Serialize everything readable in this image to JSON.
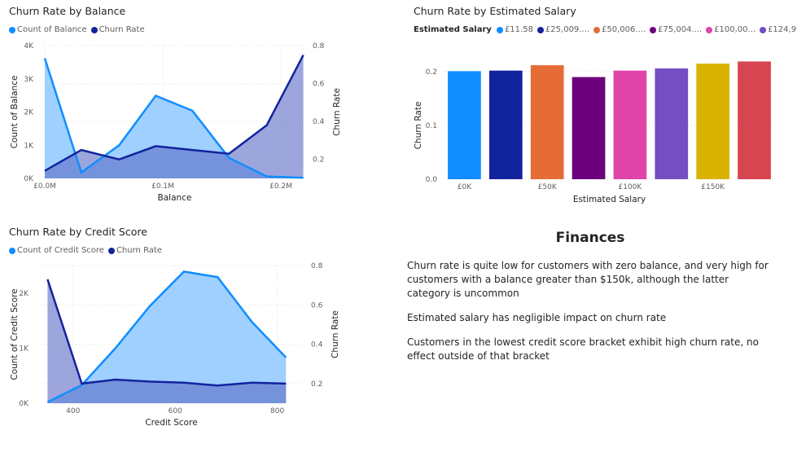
{
  "colors": {
    "count": "#118dff",
    "count_fill": "#9fd0ff",
    "churn": "#12239e",
    "churn_fill": "#5a6bc4",
    "axis_text": "#605e5c",
    "gridline": "#e1dfdd"
  },
  "chart_data": [
    {
      "type": "area",
      "title": "Churn Rate by Balance",
      "xlabel": "Balance",
      "ylabel": "Count of Balance",
      "y2label": "Churn Rate",
      "xlim": [
        0,
        0.22
      ],
      "ylim": [
        0,
        4000
      ],
      "y2lim": [
        0.1,
        0.8
      ],
      "xticks": [
        0,
        0.1,
        0.2
      ],
      "xtick_labels": [
        "£0.0M",
        "£0.1M",
        "£0.2M"
      ],
      "yticks": [
        0,
        1000,
        2000,
        3000,
        4000
      ],
      "ytick_labels": [
        "0K",
        "1K",
        "2K",
        "3K",
        "4K"
      ],
      "y2ticks": [
        0.2,
        0.4,
        0.6,
        0.8
      ],
      "y2tick_labels": [
        "0.2",
        "0.4",
        "0.6",
        "0.8"
      ],
      "legend": [
        "Count of Balance",
        "Churn Rate"
      ],
      "legend_position": "top-left",
      "grid": true,
      "x": [
        0,
        0.031,
        0.063,
        0.094,
        0.125,
        0.156,
        0.188,
        0.219
      ],
      "series": [
        {
          "name": "Count of Balance",
          "axis": "left",
          "values": [
            3620,
            180,
            1000,
            2490,
            2040,
            620,
            60,
            20
          ]
        },
        {
          "name": "Churn Rate",
          "axis": "right",
          "values": [
            0.14,
            0.25,
            0.2,
            0.27,
            0.25,
            0.23,
            0.38,
            0.75
          ]
        }
      ]
    },
    {
      "type": "bar",
      "title": "Churn Rate by Estimated Salary",
      "xlabel": "Estimated Salary",
      "ylabel": "Churn Rate",
      "legend_title": "Estimated Salary",
      "legend": [
        "£11.58",
        "£25,009....",
        "£50,006....",
        "£75,004....",
        "£100,00...",
        "£124,99..."
      ],
      "legend_position": "top",
      "ylim": [
        0,
        0.2
      ],
      "yticks": [
        0,
        0.1,
        0.2
      ],
      "ytick_labels": [
        "0.0",
        "0.1",
        "0.2"
      ],
      "xtick_labels": [
        "£0K",
        "£50K",
        "£100K",
        "£150K"
      ],
      "grid": true,
      "values": [
        0.201,
        0.202,
        0.212,
        0.19,
        0.202,
        0.206,
        0.215,
        0.219
      ],
      "bar_colors": [
        "#118dff",
        "#12239e",
        "#e66c37",
        "#6b007b",
        "#e044a7",
        "#744ec2",
        "#d9b300",
        "#d64550"
      ]
    },
    {
      "type": "area",
      "title": "Churn Rate by Credit Score",
      "xlabel": "Credit Score",
      "ylabel": "Count of Credit Score",
      "y2label": "Churn Rate",
      "xlim": [
        335,
        850
      ],
      "ylim": [
        0,
        2500
      ],
      "y2lim": [
        0.1,
        0.8
      ],
      "xticks": [
        400,
        600,
        800
      ],
      "xtick_labels": [
        "400",
        "600",
        "800"
      ],
      "yticks": [
        0,
        1000,
        2000
      ],
      "ytick_labels": [
        "0K",
        "1K",
        "2K"
      ],
      "y2ticks": [
        0.2,
        0.4,
        0.6,
        0.8
      ],
      "y2tick_labels": [
        "0.2",
        "0.4",
        "0.6",
        "0.8"
      ],
      "legend": [
        "Count of Credit Score",
        "Churn Rate"
      ],
      "legend_position": "top-left",
      "grid": true,
      "x": [
        350,
        417,
        483,
        550,
        617,
        683,
        750,
        817
      ],
      "series": [
        {
          "name": "Count of Credit Score",
          "axis": "left",
          "values": [
            20,
            330,
            1000,
            1760,
            2390,
            2290,
            1480,
            830
          ]
        },
        {
          "name": "Churn Rate",
          "axis": "right",
          "values": [
            0.73,
            0.2,
            0.22,
            0.21,
            0.205,
            0.19,
            0.205,
            0.2
          ]
        }
      ]
    }
  ],
  "text": {
    "title": "Finances",
    "paragraphs": [
      "Churn rate is quite low for customers with zero balance, and very high for customers with a balance greater than $150k, although the latter category is uncommon",
      "Estimated salary has negligible impact on churn rate",
      "Customers in the lowest credit score bracket exhibit high churn rate, no effect outside of that bracket"
    ]
  }
}
